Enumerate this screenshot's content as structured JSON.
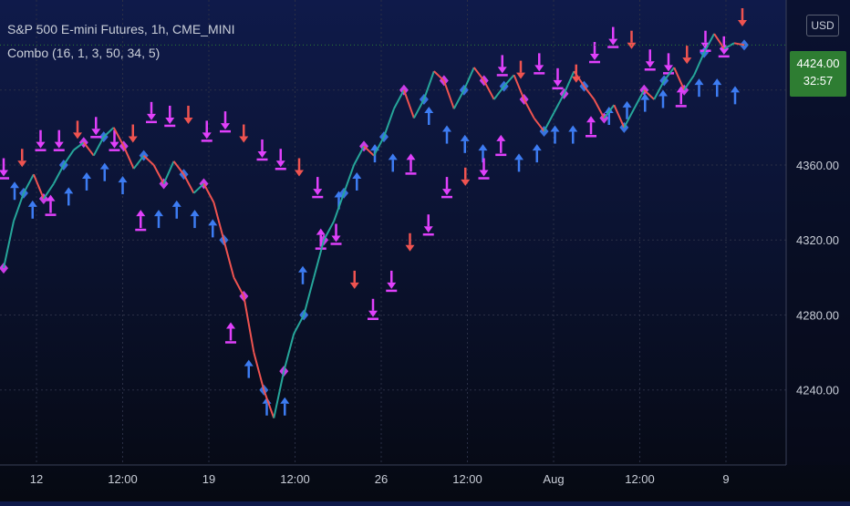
{
  "header": {
    "symbol_title": "S&P 500 E-mini Futures, 1h, CME_MINI",
    "indicator": "Combo (16, 1, 3, 50, 34, 5)",
    "currency": "USD"
  },
  "last_price": {
    "value": "4424.00",
    "countdown": "32:57"
  },
  "colors": {
    "background_top": "#0f1a4a",
    "background_bottom": "#060912",
    "up_candle": "#26a69a",
    "down_candle": "#ef5350",
    "buy_arrow": "#3d7cf2",
    "sell_arrow": "#ef5350",
    "combo_marker": "#e040fb",
    "last_price_bg": "#2e7d32",
    "grid": "#2a2f45",
    "axis_text": "#c9ced8"
  },
  "chart_data": {
    "type": "line",
    "title": "S&P 500 E-mini Futures, 1h, CME_MINI",
    "xlabel": "",
    "ylabel": "",
    "x_ticks": [
      "12",
      "12:00",
      "19",
      "12:00",
      "26",
      "12:00",
      "Aug",
      "12:00",
      "9"
    ],
    "y_ticks": [
      "4240.00",
      "4280.00",
      "4320.00",
      "4360.00",
      "4400.00"
    ],
    "ylim": [
      4200,
      4448
    ],
    "grid": true,
    "series": [
      {
        "values": [
          4305,
          4330,
          4345,
          4355,
          4342,
          4350,
          4360,
          4368,
          4372,
          4365,
          4375,
          4380,
          4370,
          4358,
          4365,
          4360,
          4350,
          4362,
          4355,
          4345,
          4350,
          4340,
          4320,
          4300,
          4290,
          4260,
          4240,
          4225,
          4250,
          4270,
          4280,
          4300,
          4320,
          4330,
          4345,
          4360,
          4370,
          4365,
          4375,
          4390,
          4400,
          4385,
          4395,
          4410,
          4405,
          4390,
          4400,
          4412,
          4405,
          4395,
          4402,
          4408,
          4395,
          4385,
          4378,
          4388,
          4398,
          4410,
          4402,
          4395,
          4385,
          4392,
          4380,
          4390,
          4400,
          4395,
          4405,
          4412,
          4400,
          4408,
          4420,
          4430,
          4422,
          4425,
          4424
        ]
      }
    ],
    "buy_signals": [
      4355,
      4345,
      4348,
      4352,
      4360,
      4365,
      4358,
      4340,
      4340,
      4345,
      4340,
      4335,
      4280,
      4260,
      4240,
      4240,
      4310,
      4330,
      4350,
      4360,
      4375,
      4370,
      4370,
      4395,
      4385,
      4380,
      4375,
      4380,
      4370,
      4375,
      4385,
      4385,
      4390,
      4395,
      4398,
      4402,
      4404,
      4406,
      4410,
      4410,
      4406
    ],
    "sell_signals": [
      4350,
      4355,
      4365,
      4365,
      4370,
      4372,
      4365,
      4368,
      4380,
      4378,
      4378,
      4370,
      4375,
      4368,
      4360,
      4355,
      4350,
      4340,
      4315,
      4290,
      4275,
      4290,
      4310,
      4320,
      4340,
      4345,
      4350,
      4405,
      4402,
      4406,
      4398,
      4400,
      4412,
      4420,
      4418,
      4408,
      4406,
      4410,
      4418,
      4415,
      4430
    ]
  }
}
